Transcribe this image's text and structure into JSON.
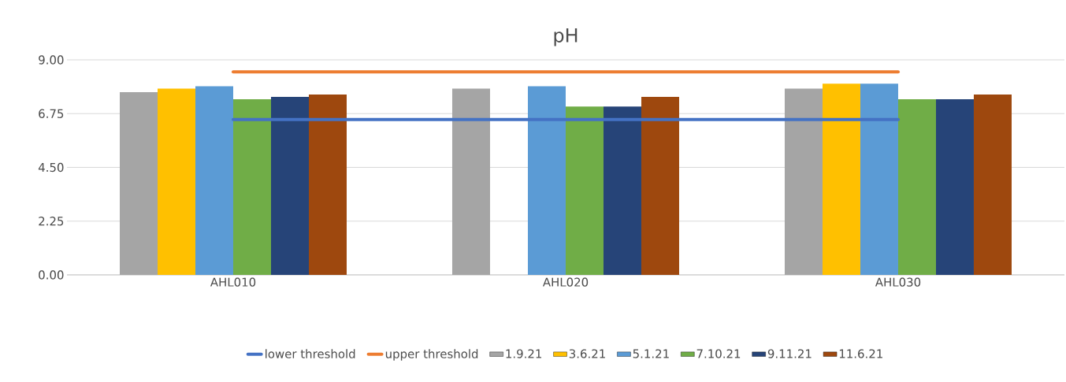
{
  "chart_data": {
    "type": "bar",
    "title": "pH",
    "categories": [
      "AHL010",
      "AHL020",
      "AHL030"
    ],
    "series": [
      {
        "name": "lower threshold",
        "type": "line",
        "color": "#4472c4",
        "values": [
          6.5,
          6.5,
          6.5
        ]
      },
      {
        "name": "upper threshold",
        "type": "line",
        "color": "#ed7d31",
        "values": [
          8.5,
          8.5,
          8.5
        ]
      },
      {
        "name": "1.9.21",
        "color": "#a5a5a5",
        "values": [
          7.65,
          7.8,
          7.8
        ]
      },
      {
        "name": "3.6.21",
        "color": "#ffc000",
        "values": [
          7.8,
          null,
          8.0
        ]
      },
      {
        "name": "5.1.21",
        "color": "#5b9bd5",
        "values": [
          7.9,
          7.9,
          8.0
        ]
      },
      {
        "name": "7.10.21",
        "color": "#70ad47",
        "values": [
          7.35,
          7.05,
          7.35
        ]
      },
      {
        "name": "9.11.21",
        "color": "#264478",
        "values": [
          7.45,
          7.05,
          7.35
        ]
      },
      {
        "name": "11.6.21",
        "color": "#9e480e",
        "values": [
          7.55,
          7.45,
          7.55
        ]
      }
    ],
    "ylim": [
      0,
      9
    ],
    "yticks": [
      {
        "value": 0,
        "label": "0.00"
      },
      {
        "value": 2.25,
        "label": "2.25"
      },
      {
        "value": 4.5,
        "label": "4.50"
      },
      {
        "value": 6.75,
        "label": "6.75"
      },
      {
        "value": 9,
        "label": "9.00"
      }
    ],
    "grid": "y",
    "legend": "bottom"
  }
}
